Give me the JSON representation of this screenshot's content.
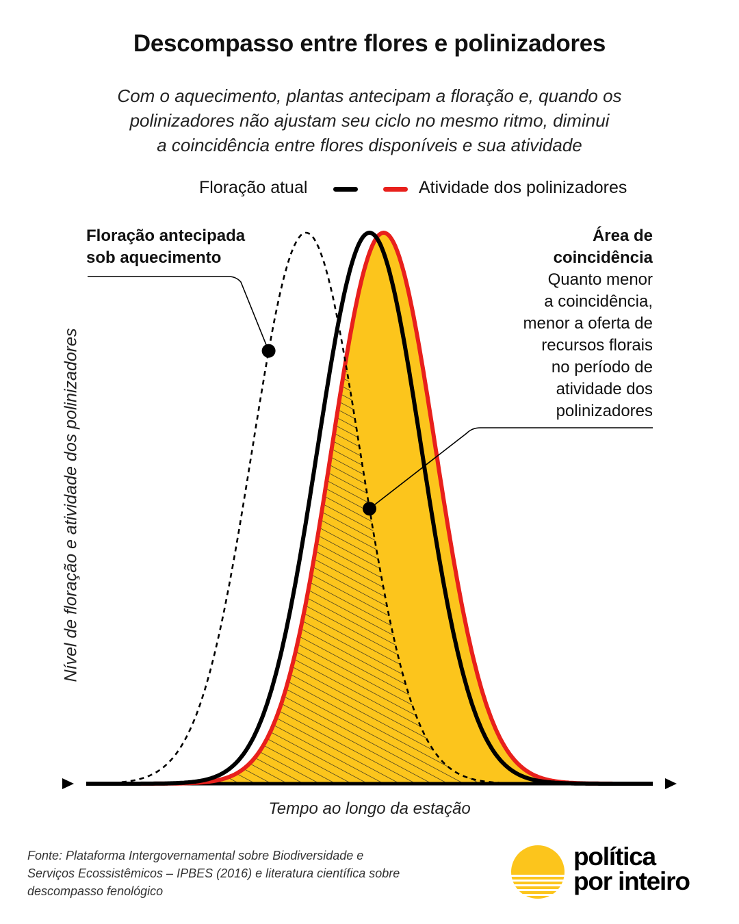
{
  "chart_data": {
    "type": "line",
    "title": "Descompasso entre flores e polinizadores",
    "subtitle_lines": [
      "Com o aquecimento, plantas antecipam a floração e, quando os",
      "polinizadores não ajustam seu ciclo no mesmo ritmo, diminui",
      "a coincidência entre flores disponíveis e sua atividade"
    ],
    "xlabel": "Tempo ao longo da estação",
    "ylabel": "Nível de floração e atividade dos polinizadores",
    "xlim": [
      0,
      100
    ],
    "ylim": [
      0,
      100
    ],
    "series": [
      {
        "name": "Floração atual",
        "style": "solid",
        "color": "#000000",
        "peak_x": 50.0,
        "spread": 9.2,
        "peak_y": 100
      },
      {
        "name": "Atividade dos polinizadores",
        "style": "solid",
        "color": "#e8201c",
        "peak_x": 52.5,
        "spread": 9.2,
        "peak_y": 100
      },
      {
        "name": "Floração antecipada sob aquecimento",
        "style": "dashed",
        "color": "#000000",
        "peak_x": 38.8,
        "spread": 9.5,
        "peak_y": 100
      }
    ],
    "legend": {
      "position": "top-right",
      "items": [
        {
          "label": "Floração atual",
          "color": "#000000"
        },
        {
          "label": "Atividade dos polinizadores",
          "color": "#e8201c"
        }
      ]
    },
    "annotations": {
      "early": {
        "title_lines": [
          "Floração antecipada",
          "sob aquecimento"
        ]
      },
      "overlap": {
        "title_lines": [
          "Área de",
          "coincidência"
        ],
        "text_lines": [
          "Quanto menor",
          "a coincidência,",
          "menor a oferta de",
          "recursos florais",
          "no período de",
          "atividade dos",
          "polinizadores"
        ]
      }
    },
    "fill_color": "#fcc51c"
  },
  "source_lines": [
    "Fonte: Plataforma Intergovernamental sobre Biodiversidade e",
    "Serviços Ecossistêmicos – IPBES (2016) e literatura científica sobre",
    "descompasso fenológico"
  ],
  "brand": {
    "lines": [
      "política",
      "por inteiro"
    ],
    "color": "#fcc51c"
  }
}
